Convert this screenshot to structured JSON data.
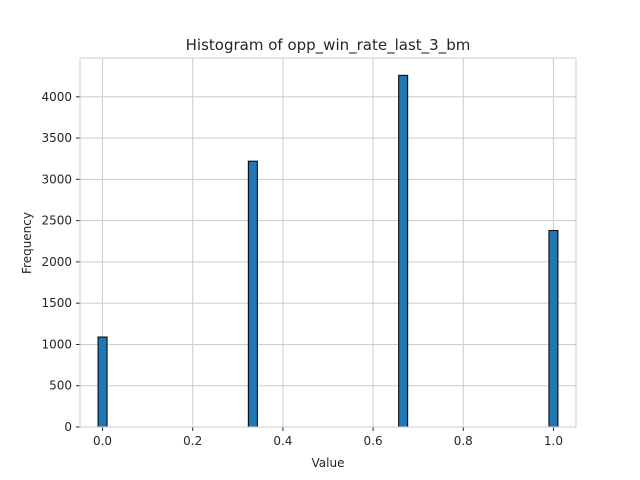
{
  "chart_data": {
    "type": "bar",
    "title": "Histogram of opp_win_rate_last_3_bm",
    "xlabel": "Value",
    "ylabel": "Frequency",
    "xlim": [
      -0.05,
      1.05
    ],
    "ylim": [
      0,
      4470
    ],
    "xticks": [
      0.0,
      0.2,
      0.4,
      0.6,
      0.8,
      1.0
    ],
    "xtick_labels": [
      "0.0",
      "0.2",
      "0.4",
      "0.6",
      "0.8",
      "1.0"
    ],
    "yticks": [
      0,
      500,
      1000,
      1500,
      2000,
      2500,
      3000,
      3500,
      4000
    ],
    "ytick_labels": [
      "0",
      "500",
      "1000",
      "1500",
      "2000",
      "2500",
      "3000",
      "3500",
      "4000"
    ],
    "grid": true,
    "bar_color": "#1f77b4",
    "edge_color": "#000000",
    "bin_width": 0.02,
    "bins": [
      {
        "x": 0.0,
        "count": 1090
      },
      {
        "x": 0.3333,
        "count": 3220
      },
      {
        "x": 0.6667,
        "count": 4260
      },
      {
        "x": 1.0,
        "count": 2380
      }
    ]
  }
}
